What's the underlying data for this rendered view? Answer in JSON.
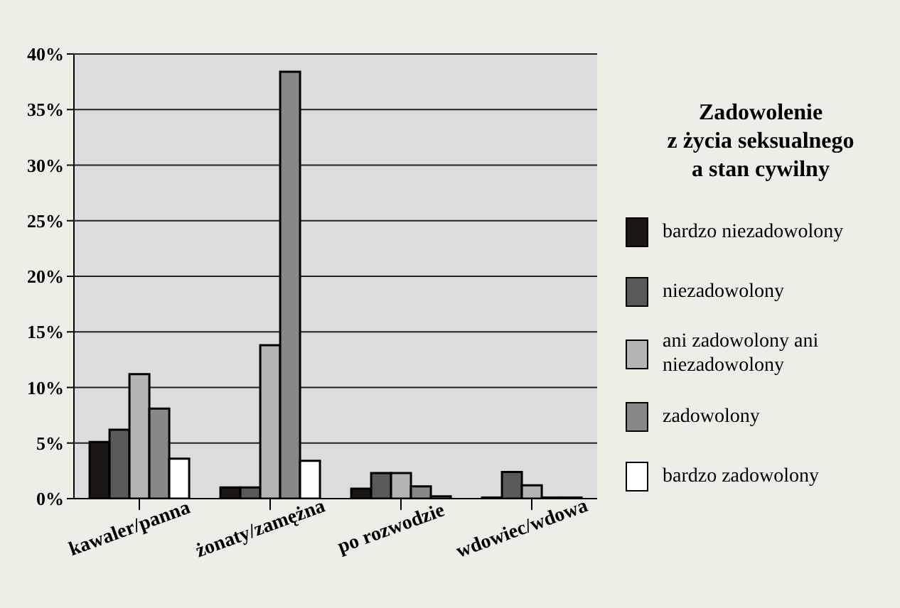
{
  "chart_data": {
    "type": "bar",
    "legend_title": "Zadowolenie\nz życia seksualnego\na stan cywilny",
    "categories": [
      "kawaler/panna",
      "żonaty/zamężna",
      "po rozwodzie",
      "wdowiec/wdowa"
    ],
    "series": [
      {
        "name": "bardzo niezadowolony",
        "color": "#1a1614",
        "values": [
          5.1,
          1.0,
          0.9,
          0.1
        ]
      },
      {
        "name": "niezadowolony",
        "color": "#5a5a5a",
        "values": [
          6.2,
          1.0,
          2.3,
          2.4
        ]
      },
      {
        "name": "ani zadowolony ani niezadowolony",
        "color": "#b4b4b4",
        "values": [
          11.2,
          13.8,
          2.3,
          1.2
        ]
      },
      {
        "name": "zadowolony",
        "color": "#888888",
        "values": [
          8.1,
          38.4,
          1.1,
          0.1
        ]
      },
      {
        "name": "bardzo zadowolony",
        "color": "#ffffff",
        "values": [
          3.6,
          3.4,
          0.2,
          0.1
        ]
      }
    ],
    "ylim": [
      0,
      40
    ],
    "yticks": [
      {
        "value": 0,
        "label": "0%"
      },
      {
        "value": 5,
        "label": "5%"
      },
      {
        "value": 10,
        "label": "10%"
      },
      {
        "value": 15,
        "label": "15%"
      },
      {
        "value": 20,
        "label": "20%"
      },
      {
        "value": 25,
        "label": "25%"
      },
      {
        "value": 30,
        "label": "30%"
      },
      {
        "value": 35,
        "label": "35%"
      },
      {
        "value": 40,
        "label": "40%"
      }
    ],
    "grid": "y",
    "legend": "right"
  }
}
